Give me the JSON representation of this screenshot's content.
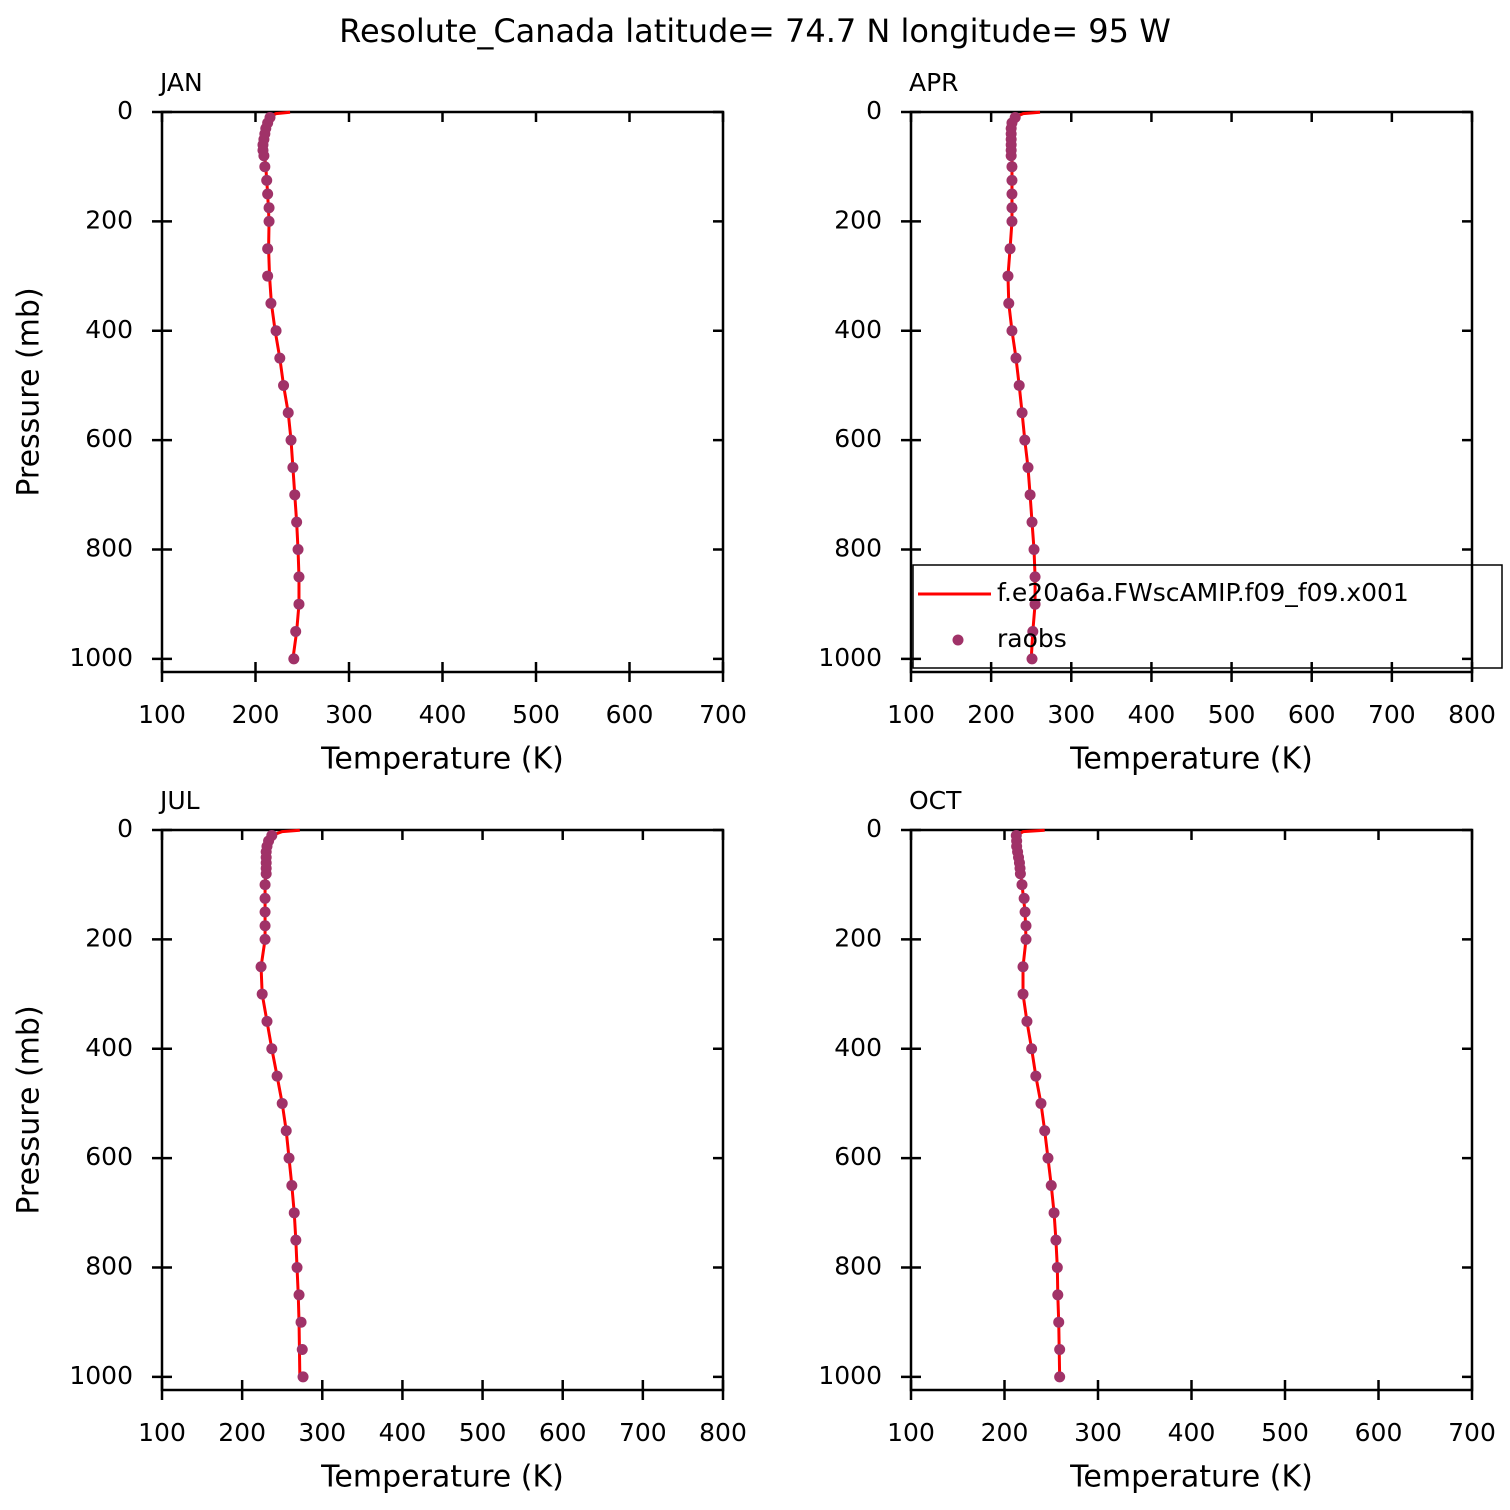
{
  "title": "Resolute_Canada  latitude= 74.7 N longitude= 95 W",
  "chart_data": [
    {
      "type": "line",
      "title": "JAN",
      "xlabel": "Temperature (K)",
      "ylabel": "Pressure (mb)",
      "xlim": [
        100,
        700
      ],
      "xticks": [
        100,
        200,
        300,
        400,
        500,
        600,
        700
      ],
      "ylim": [
        1024,
        0
      ],
      "yticks": [
        0,
        200,
        400,
        600,
        800,
        1000
      ],
      "series": [
        {
          "kind": "line",
          "color": "#ff0000",
          "y": [
            0.5,
            3,
            10,
            30,
            50,
            70,
            100,
            150,
            200,
            250,
            300,
            350,
            400,
            450,
            500,
            550,
            600,
            650,
            700,
            750,
            800,
            850,
            900,
            950,
            1000
          ],
          "x": [
            237,
            222,
            214,
            211,
            209,
            209,
            211,
            213,
            214.5,
            214,
            215,
            217,
            221,
            226,
            230,
            235,
            238,
            240,
            242,
            244,
            245.5,
            246.5,
            246.5,
            244,
            240
          ]
        },
        {
          "kind": "scatter",
          "color": "#a03268",
          "y": [
            10,
            20,
            30,
            40,
            50,
            60,
            70,
            80,
            100,
            125,
            150,
            175,
            200,
            250,
            300,
            350,
            400,
            450,
            500,
            550,
            600,
            650,
            700,
            750,
            800,
            850,
            900,
            950,
            1000
          ],
          "x": [
            215.5,
            213,
            211,
            210,
            209,
            208,
            208,
            209,
            210,
            212,
            213,
            214.5,
            214.5,
            213,
            213,
            216.5,
            222,
            226,
            230,
            235,
            238,
            240,
            242,
            244,
            245.5,
            246.5,
            246.5,
            243,
            241
          ]
        }
      ]
    },
    {
      "type": "line",
      "title": "APR",
      "xlabel": "Temperature (K)",
      "xlim": [
        100,
        800
      ],
      "xticks": [
        100,
        200,
        300,
        400,
        500,
        600,
        700,
        800
      ],
      "ylim": [
        1024,
        0
      ],
      "yticks": [
        0,
        200,
        400,
        600,
        800,
        1000
      ],
      "legend": "lower right",
      "series": [
        {
          "kind": "line",
          "name": "f.e20a6a.FWscAMIP.f09_f09.x001",
          "color": "#ff0000",
          "y": [
            0.5,
            3,
            10,
            30,
            50,
            70,
            100,
            150,
            200,
            250,
            300,
            350,
            400,
            450,
            500,
            550,
            600,
            650,
            700,
            750,
            800,
            850,
            900,
            950,
            1000
          ],
          "x": [
            261,
            240,
            229,
            226,
            226,
            226,
            226,
            226,
            226,
            223.6,
            221,
            222,
            226,
            231,
            235,
            238.6,
            242,
            246,
            248.6,
            251,
            253.5,
            254.8,
            254.8,
            252,
            250
          ]
        },
        {
          "kind": "scatter",
          "name": "raobs",
          "color": "#a03268",
          "y": [
            10,
            20,
            30,
            40,
            50,
            60,
            70,
            80,
            100,
            125,
            150,
            175,
            200,
            250,
            300,
            350,
            400,
            450,
            500,
            550,
            600,
            650,
            700,
            750,
            800,
            850,
            900,
            950,
            1000
          ],
          "x": [
            230,
            226,
            225,
            225,
            225,
            225,
            225,
            225,
            226,
            226,
            226,
            226,
            226,
            223.6,
            221,
            222,
            226,
            231,
            235,
            238.6,
            242,
            246,
            248.6,
            251,
            253.5,
            254.8,
            254.8,
            252,
            251
          ]
        }
      ]
    },
    {
      "type": "line",
      "title": "JUL",
      "xlabel": "Temperature (K)",
      "ylabel": "Pressure (mb)",
      "xlim": [
        100,
        800
      ],
      "xticks": [
        100,
        200,
        300,
        400,
        500,
        600,
        700,
        800
      ],
      "ylim": [
        1024,
        0
      ],
      "yticks": [
        0,
        200,
        400,
        600,
        800,
        1000
      ],
      "series": [
        {
          "kind": "line",
          "color": "#ff0000",
          "y": [
            0.5,
            3,
            10,
            30,
            50,
            70,
            100,
            150,
            200,
            250,
            300,
            350,
            400,
            450,
            500,
            550,
            600,
            650,
            700,
            750,
            800,
            850,
            900,
            950,
            1000
          ],
          "x": [
            272,
            250,
            237,
            231,
            230,
            230,
            228.6,
            228.6,
            228.6,
            223.6,
            225,
            231,
            237,
            243.6,
            250,
            255,
            258.5,
            262,
            265,
            267,
            268.5,
            270,
            271,
            271.5,
            272
          ]
        },
        {
          "kind": "scatter",
          "color": "#a03268",
          "y": [
            10,
            20,
            30,
            40,
            50,
            60,
            70,
            80,
            100,
            125,
            150,
            175,
            200,
            250,
            300,
            350,
            400,
            450,
            500,
            550,
            600,
            650,
            700,
            750,
            800,
            850,
            900,
            950,
            1000
          ],
          "x": [
            237,
            233,
            231,
            230,
            230,
            230,
            230,
            230,
            228.6,
            228.6,
            228.6,
            228.6,
            228.6,
            223.6,
            225,
            231,
            237,
            243.6,
            250,
            255,
            258.5,
            262,
            265,
            267,
            268.5,
            271,
            273.5,
            275,
            276
          ]
        }
      ]
    },
    {
      "type": "line",
      "title": "OCT",
      "xlabel": "Temperature (K)",
      "xlim": [
        100,
        700
      ],
      "xticks": [
        100,
        200,
        300,
        400,
        500,
        600,
        700
      ],
      "ylim": [
        1024,
        0
      ],
      "yticks": [
        0,
        200,
        400,
        600,
        800,
        1000
      ],
      "series": [
        {
          "kind": "line",
          "color": "#ff0000",
          "y": [
            0.5,
            3,
            10,
            30,
            50,
            70,
            100,
            150,
            200,
            250,
            300,
            350,
            400,
            450,
            500,
            550,
            600,
            650,
            700,
            750,
            800,
            850,
            900,
            950,
            1000
          ],
          "x": [
            243,
            220,
            212.6,
            213,
            215,
            216.6,
            218.7,
            222,
            223,
            219.8,
            219.8,
            224,
            229,
            233.5,
            239,
            243,
            246.5,
            250,
            253,
            255,
            256.5,
            257,
            258,
            258.5,
            259
          ]
        },
        {
          "kind": "scatter",
          "color": "#a03268",
          "y": [
            10,
            20,
            30,
            40,
            50,
            60,
            70,
            80,
            100,
            125,
            150,
            175,
            200,
            250,
            300,
            350,
            400,
            450,
            500,
            550,
            600,
            650,
            700,
            750,
            800,
            850,
            900,
            950,
            1000
          ],
          "x": [
            212.6,
            213,
            213,
            214,
            215,
            216,
            216.6,
            217,
            218.7,
            221,
            222,
            223,
            223,
            219.8,
            219.8,
            224,
            229,
            233.5,
            239,
            243,
            246.5,
            250,
            253,
            255,
            256.5,
            257,
            258,
            259,
            259
          ]
        }
      ]
    }
  ]
}
